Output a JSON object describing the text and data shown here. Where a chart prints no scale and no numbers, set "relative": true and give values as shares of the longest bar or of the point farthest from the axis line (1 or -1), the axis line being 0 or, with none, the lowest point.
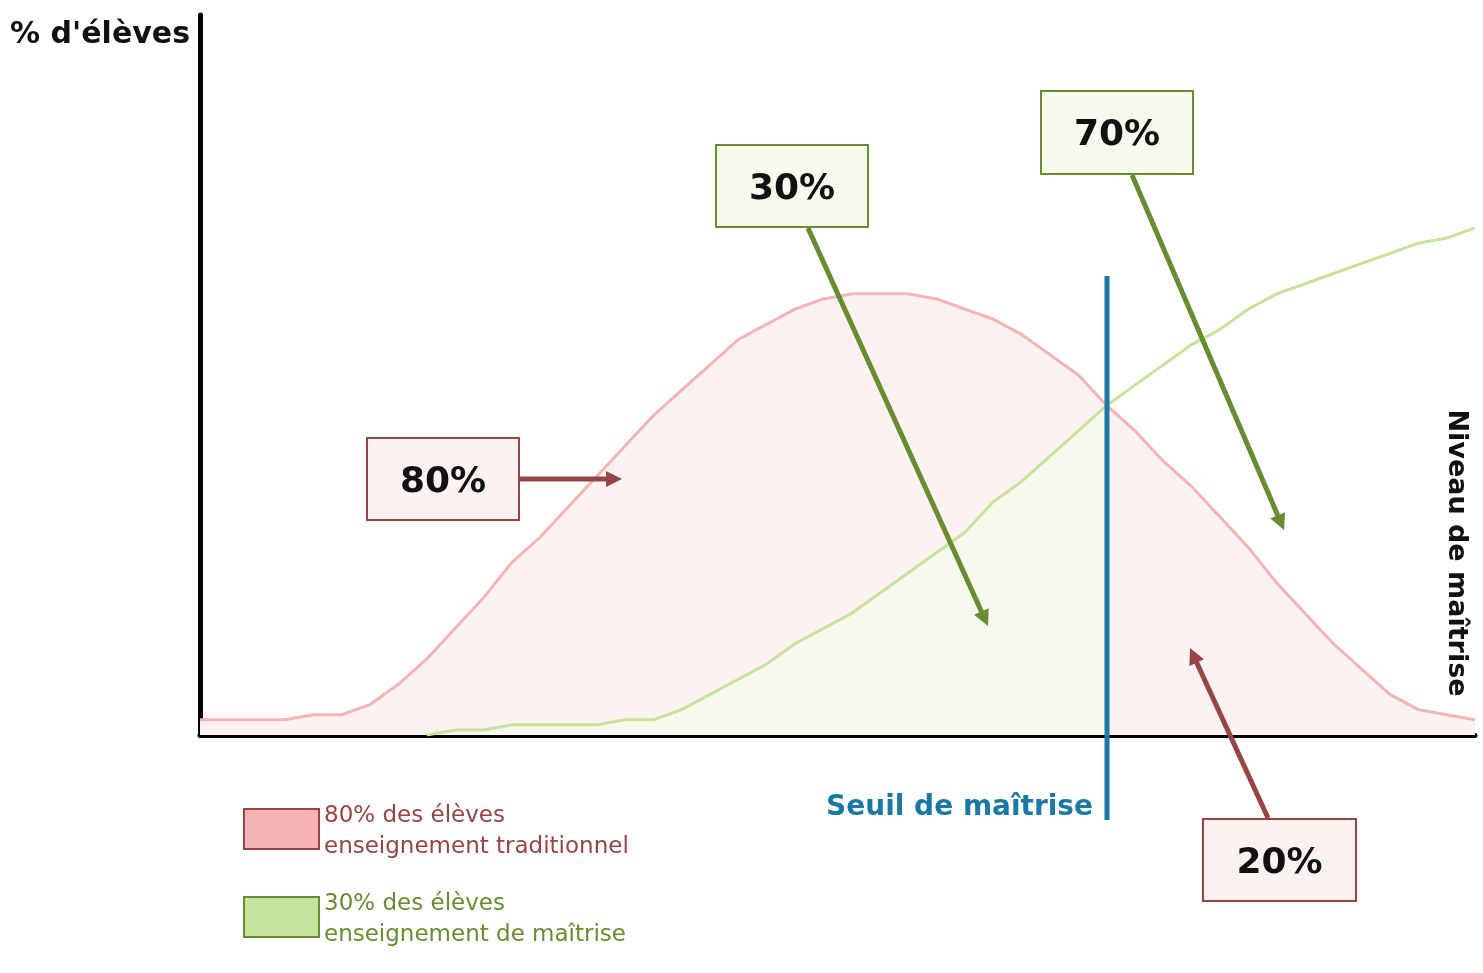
{
  "chart_data": {
    "type": "area",
    "relative": true,
    "marker": "none",
    "legend": "bottom left",
    "categories": [
      null,
      null,
      null,
      null,
      null,
      null,
      null,
      null,
      null,
      null,
      null,
      null,
      null,
      null,
      null,
      null,
      null,
      null,
      null,
      null,
      null,
      null,
      null,
      null,
      null,
      null,
      null,
      null,
      null,
      null,
      null,
      null,
      null,
      null,
      null,
      null,
      null,
      null,
      null,
      null,
      null,
      null,
      null,
      null,
      null,
      null
    ],
    "series": [
      {
        "name": "80% des élèves\nenseignement traditionnel",
        "color": "#f4b4b4",
        "values": [
          0.03,
          0.03,
          0.03,
          0.03,
          0.04,
          0.04,
          0.06,
          0.1,
          0.15,
          0.21,
          0.27,
          0.34,
          0.39,
          0.45,
          0.51,
          0.57,
          0.63,
          0.68,
          0.73,
          0.78,
          0.81,
          0.84,
          0.86,
          0.87,
          0.87,
          0.87,
          0.86,
          0.84,
          0.82,
          0.79,
          0.75,
          0.71,
          0.65,
          0.6,
          0.54,
          0.49,
          0.43,
          0.37,
          0.3,
          0.24,
          0.18,
          0.13,
          0.08,
          0.05,
          0.04,
          0.03
        ]
      },
      {
        "name": "30% des élèves\nenseignement de maîtrise",
        "color": "#c6e39c",
        "values": [
          null,
          null,
          null,
          null,
          null,
          null,
          null,
          null,
          0,
          0.01,
          0.01,
          0.02,
          0.02,
          0.02,
          0.02,
          0.03,
          0.03,
          0.05,
          0.08,
          0.11,
          0.14,
          0.18,
          0.21,
          0.24,
          0.28,
          0.32,
          0.36,
          0.4,
          0.46,
          0.5,
          0.55,
          0.6,
          0.65,
          0.69,
          0.73,
          0.77,
          0.8,
          0.84,
          0.87,
          0.89,
          0.91,
          0.93,
          0.95,
          0.97,
          0.98,
          1
        ]
      }
    ],
    "annotations": [
      "80%",
      "30%",
      "70%",
      "20%",
      "Seuil de maîtrise",
      "% d'élèves",
      "Niveau de maîtrise"
    ]
  }
}
